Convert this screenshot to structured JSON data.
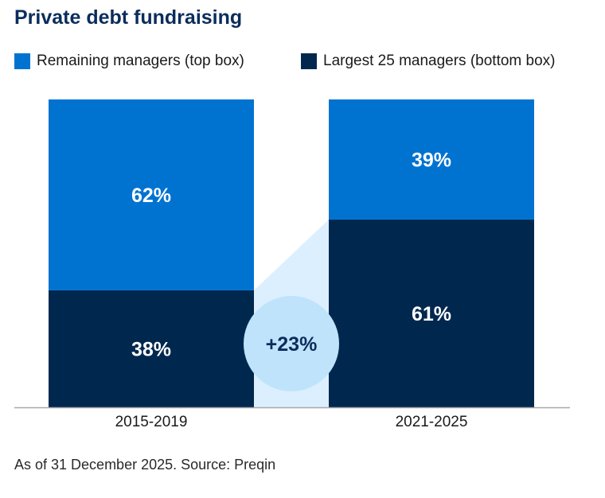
{
  "title": "Private debt fundraising",
  "footer": "As of 31 December 2025. Source: Preqin",
  "colors": {
    "remaining": "#0073d1",
    "largest": "#00284f",
    "connector": "#dcefff",
    "bubble": "#bfe3fb",
    "axis": "#a8a8a8",
    "title": "#0b2d5c"
  },
  "legend": [
    {
      "label": "Remaining managers (top box)",
      "color": "#0073d1"
    },
    {
      "label": "Largest 25 managers (bottom box)",
      "color": "#00284f"
    }
  ],
  "chart_data": {
    "type": "bar",
    "stacked": true,
    "categories": [
      "2015-2019",
      "2021-2025"
    ],
    "series": [
      {
        "name": "Largest 25 managers (bottom box)",
        "values": [
          38,
          61
        ],
        "labels": [
          "38%",
          "61%"
        ]
      },
      {
        "name": "Remaining managers (top box)",
        "values": [
          62,
          39
        ],
        "labels": [
          "62%",
          "39%"
        ]
      }
    ],
    "ylim": [
      0,
      100
    ],
    "annotation": "+23%",
    "title": "Private debt fundraising",
    "legend_position": "top"
  }
}
